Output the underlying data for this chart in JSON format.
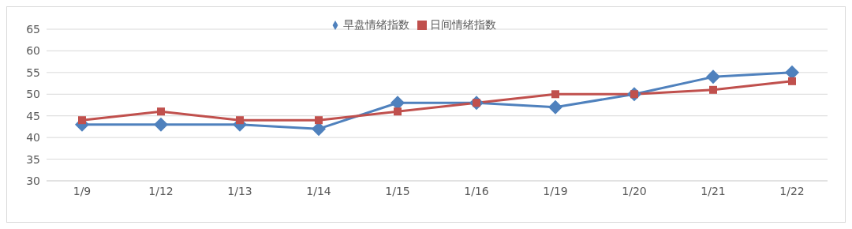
{
  "chart_data": {
    "type": "line",
    "categories": [
      "1/9",
      "1/12",
      "1/13",
      "1/14",
      "1/15",
      "1/16",
      "1/19",
      "1/20",
      "1/21",
      "1/22"
    ],
    "series": [
      {
        "name": "早盘情绪指数",
        "color": "#4f81bd",
        "marker": "diamond",
        "values": [
          43,
          43,
          43,
          42,
          48,
          48,
          47,
          50,
          54,
          55
        ]
      },
      {
        "name": "日间情绪指数",
        "color": "#c0504d",
        "marker": "square",
        "values": [
          44,
          46,
          44,
          44,
          46,
          48,
          50,
          50,
          51,
          53
        ]
      }
    ],
    "ylim": [
      30,
      65
    ],
    "yticks": [
      30,
      35,
      40,
      45,
      50,
      55,
      60,
      65
    ],
    "grid": "y",
    "legend": "top",
    "line_style": "solid"
  }
}
